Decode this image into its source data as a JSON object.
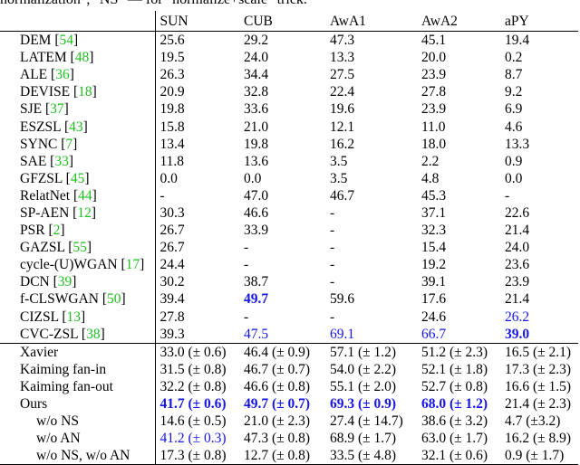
{
  "caption_tail": "normalization\", \"NS\" — for \"normalize+scale\" trick.",
  "headers": [
    "",
    "SUN",
    "CUB",
    "AwA1",
    "AwA2",
    "aPY"
  ],
  "rows_top": [
    {
      "name": "DEM",
      "ref": "54",
      "cells": [
        {
          "v": "25.6"
        },
        {
          "v": "29.2"
        },
        {
          "v": "47.3"
        },
        {
          "v": "45.1"
        },
        {
          "v": "19.4"
        }
      ]
    },
    {
      "name": "LATEM",
      "ref": "48",
      "cells": [
        {
          "v": "19.5"
        },
        {
          "v": "24.0"
        },
        {
          "v": "13.3"
        },
        {
          "v": "20.0"
        },
        {
          "v": "0.2"
        }
      ]
    },
    {
      "name": "ALE",
      "ref": "36",
      "cells": [
        {
          "v": "26.3"
        },
        {
          "v": "34.4"
        },
        {
          "v": "27.5"
        },
        {
          "v": "23.9"
        },
        {
          "v": "8.7"
        }
      ]
    },
    {
      "name": "DEVISE",
      "ref": "18",
      "cells": [
        {
          "v": "20.9"
        },
        {
          "v": "32.8"
        },
        {
          "v": "22.4"
        },
        {
          "v": "27.8"
        },
        {
          "v": "9.2"
        }
      ]
    },
    {
      "name": "SJE",
      "ref": "37",
      "cells": [
        {
          "v": "19.8"
        },
        {
          "v": "33.6"
        },
        {
          "v": "19.6"
        },
        {
          "v": "23.9"
        },
        {
          "v": "6.9"
        }
      ]
    },
    {
      "name": "ESZSL",
      "ref": "43",
      "cells": [
        {
          "v": "15.8"
        },
        {
          "v": "21.0"
        },
        {
          "v": "12.1"
        },
        {
          "v": "11.0"
        },
        {
          "v": "4.6"
        }
      ]
    },
    {
      "name": "SYNC",
      "ref": "7",
      "cells": [
        {
          "v": "13.4"
        },
        {
          "v": "19.8"
        },
        {
          "v": "16.2"
        },
        {
          "v": "18.0"
        },
        {
          "v": "13.3"
        }
      ]
    },
    {
      "name": "SAE",
      "ref": "33",
      "cells": [
        {
          "v": "11.8"
        },
        {
          "v": "13.6"
        },
        {
          "v": "3.5"
        },
        {
          "v": "2.2"
        },
        {
          "v": "0.9"
        }
      ]
    },
    {
      "name": "GFZSL",
      "ref": "45",
      "cells": [
        {
          "v": "0.0"
        },
        {
          "v": "0.0"
        },
        {
          "v": "3.5"
        },
        {
          "v": "4.8"
        },
        {
          "v": "0.0"
        }
      ]
    },
    {
      "name": "RelatNet",
      "ref": "44",
      "cells": [
        {
          "v": "-"
        },
        {
          "v": "47.0"
        },
        {
          "v": "46.7"
        },
        {
          "v": "45.3"
        },
        {
          "v": "-"
        }
      ]
    },
    {
      "name": "SP-AEN",
      "ref": "12",
      "cells": [
        {
          "v": "30.3"
        },
        {
          "v": "46.6"
        },
        {
          "v": "-"
        },
        {
          "v": "37.1"
        },
        {
          "v": "22.6"
        }
      ]
    },
    {
      "name": "PSR",
      "ref": "2",
      "cells": [
        {
          "v": "26.7"
        },
        {
          "v": "33.9"
        },
        {
          "v": "-"
        },
        {
          "v": "32.3"
        },
        {
          "v": "21.4"
        }
      ]
    },
    {
      "name": "GAZSL",
      "ref": "55",
      "cells": [
        {
          "v": "26.7"
        },
        {
          "v": "-"
        },
        {
          "v": "-"
        },
        {
          "v": "15.4"
        },
        {
          "v": "24.0"
        }
      ]
    },
    {
      "name": "cycle-(U)WGAN",
      "ref": "17",
      "cells": [
        {
          "v": "24.4"
        },
        {
          "v": "-"
        },
        {
          "v": "-"
        },
        {
          "v": "19.2"
        },
        {
          "v": "23.6"
        }
      ]
    },
    {
      "name": "DCN",
      "ref": "39",
      "cells": [
        {
          "v": "30.2"
        },
        {
          "v": "38.7"
        },
        {
          "v": "-"
        },
        {
          "v": "39.1"
        },
        {
          "v": "23.9"
        }
      ]
    },
    {
      "name": "f-CLSWGAN",
      "ref": "50",
      "cells": [
        {
          "v": "39.4"
        },
        {
          "v": "49.7",
          "c": "blue",
          "b": true
        },
        {
          "v": "59.6"
        },
        {
          "v": "17.6"
        },
        {
          "v": "21.4"
        }
      ]
    },
    {
      "name": "CIZSL",
      "ref": "13",
      "cells": [
        {
          "v": "27.8"
        },
        {
          "v": "-"
        },
        {
          "v": "-"
        },
        {
          "v": "24.6"
        },
        {
          "v": "26.2",
          "c": "blue"
        }
      ]
    },
    {
      "name": "CVC-ZSL",
      "ref": "38",
      "cells": [
        {
          "v": "39.3"
        },
        {
          "v": "47.5",
          "c": "blue"
        },
        {
          "v": "69.1",
          "c": "blue"
        },
        {
          "v": "66.7",
          "c": "blue"
        },
        {
          "v": "39.0",
          "c": "blue",
          "b": true
        }
      ]
    }
  ],
  "rows_bottom": [
    {
      "name": "Xavier",
      "indent": false,
      "cells": [
        {
          "v": "33.0 (± 0.6)"
        },
        {
          "v": "46.4 (± 0.9)"
        },
        {
          "v": "57.1 (± 1.2)"
        },
        {
          "v": "51.2 (± 2.3)"
        },
        {
          "v": "16.5 (± 2.1)"
        }
      ]
    },
    {
      "name": "Kaiming fan-in",
      "indent": false,
      "cells": [
        {
          "v": "31.5 (± 0.8)"
        },
        {
          "v": "46.7 (± 0.7)"
        },
        {
          "v": "54.0 (± 2.2)"
        },
        {
          "v": "52.1 (± 1.8)"
        },
        {
          "v": "17.3 (± 2.3)"
        }
      ]
    },
    {
      "name": "Kaiming fan-out",
      "indent": false,
      "cells": [
        {
          "v": "32.2 (± 0.8)"
        },
        {
          "v": "46.6 (± 0.8)"
        },
        {
          "v": "55.1 (± 2.0)"
        },
        {
          "v": "52.7 (± 0.8)"
        },
        {
          "v": "16.6 (± 1.5)"
        }
      ]
    },
    {
      "name": "Ours",
      "indent": false,
      "cells": [
        {
          "v": "41.7 (± 0.6)",
          "c": "blue",
          "b": true
        },
        {
          "v": "49.7 (± 0.7)",
          "c": "blue",
          "b": true
        },
        {
          "v": "69.3 (± 0.9)",
          "c": "blue",
          "b": true
        },
        {
          "v": "68.0 (± 1.2)",
          "c": "blue",
          "b": true
        },
        {
          "v": "21.4 (± 2.3)"
        }
      ]
    },
    {
      "name": "w/o NS",
      "indent": true,
      "cells": [
        {
          "v": "14.6 (± 0.5)"
        },
        {
          "v": "21.0 (± 2.3)"
        },
        {
          "v": "27.4 (± 14.7)"
        },
        {
          "v": "38.6 (± 3.2)"
        },
        {
          "v": "4.7 (±3.2)"
        }
      ]
    },
    {
      "name": "w/o AN",
      "indent": true,
      "cells": [
        {
          "v": "41.2 (± 0.3)",
          "c": "blue"
        },
        {
          "v": "47.3 (± 0.8)"
        },
        {
          "v": "68.9 (± 1.7)"
        },
        {
          "v": "63.0 (± 1.7)"
        },
        {
          "v": "16.2 (± 8.9)"
        }
      ]
    },
    {
      "name": "w/o NS, w/o AN",
      "indent": true,
      "cells": [
        {
          "v": "17.3 (± 0.8)"
        },
        {
          "v": "12.7 (± 0.8)"
        },
        {
          "v": "33.5 (± 4.8)"
        },
        {
          "v": "32.1 (± 0.6)"
        },
        {
          "v": "0.9 (± 1.7)"
        }
      ]
    }
  ]
}
